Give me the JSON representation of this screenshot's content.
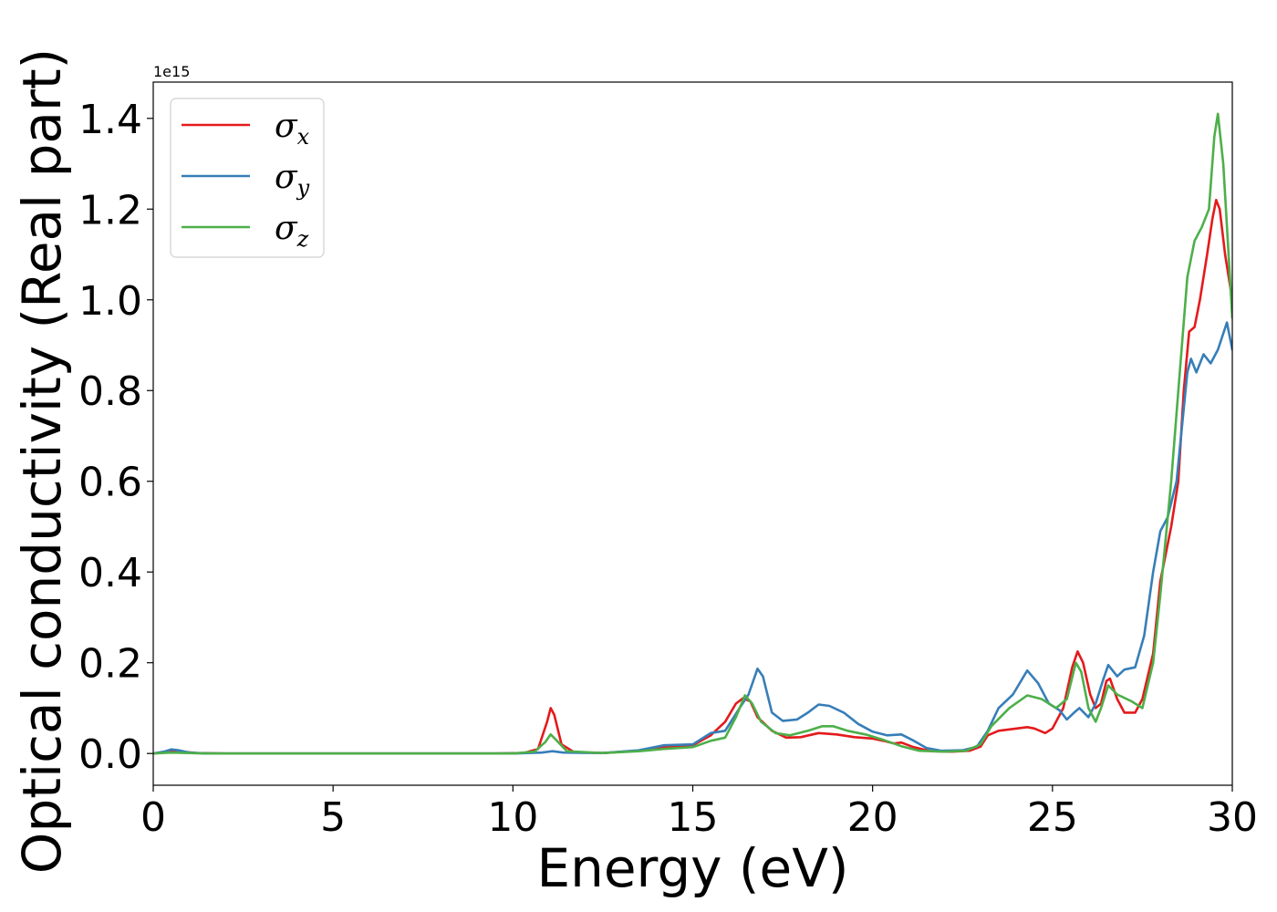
{
  "chart_data": {
    "type": "line",
    "xlabel": "Energy (eV)",
    "ylabel": "Optical conductivity (Real part)",
    "offset_text": "1e15",
    "xlim": [
      0,
      30
    ],
    "ylim": [
      -0.07,
      1.48
    ],
    "x_ticks": [
      0,
      5,
      10,
      15,
      20,
      25,
      30
    ],
    "x_tick_labels": [
      "0",
      "5",
      "10",
      "15",
      "20",
      "25",
      "30"
    ],
    "y_ticks": [
      0.0,
      0.2,
      0.4,
      0.6,
      0.8,
      1.0,
      1.2,
      1.4
    ],
    "y_tick_labels": [
      "0.0",
      "0.2",
      "0.4",
      "0.6",
      "0.8",
      "1.0",
      "1.2",
      "1.4"
    ],
    "grid": false,
    "legend_position": "top-left",
    "series": [
      {
        "name": "σx",
        "legend_main": "σ",
        "legend_sub": "x",
        "color": "#e41a1c",
        "points": [
          [
            0,
            0
          ],
          [
            0.3,
            0.003
          ],
          [
            0.5,
            0.006
          ],
          [
            0.8,
            0.004
          ],
          [
            1.2,
            0.001
          ],
          [
            2,
            0
          ],
          [
            9.5,
            0
          ],
          [
            10.3,
            0.001
          ],
          [
            10.7,
            0.01
          ],
          [
            10.95,
            0.07
          ],
          [
            11.05,
            0.1
          ],
          [
            11.15,
            0.085
          ],
          [
            11.35,
            0.02
          ],
          [
            11.7,
            0.003
          ],
          [
            12.5,
            0.001
          ],
          [
            13.5,
            0.006
          ],
          [
            14.2,
            0.013
          ],
          [
            15,
            0.018
          ],
          [
            15.5,
            0.04
          ],
          [
            15.9,
            0.07
          ],
          [
            16.2,
            0.11
          ],
          [
            16.4,
            0.122
          ],
          [
            16.6,
            0.115
          ],
          [
            16.8,
            0.08
          ],
          [
            17.2,
            0.05
          ],
          [
            17.6,
            0.035
          ],
          [
            18.0,
            0.036
          ],
          [
            18.5,
            0.045
          ],
          [
            19.0,
            0.042
          ],
          [
            19.5,
            0.036
          ],
          [
            20.0,
            0.033
          ],
          [
            20.3,
            0.028
          ],
          [
            20.6,
            0.022
          ],
          [
            20.8,
            0.024
          ],
          [
            21.1,
            0.015
          ],
          [
            21.6,
            0.005
          ],
          [
            22.2,
            0.004
          ],
          [
            22.7,
            0.006
          ],
          [
            23.0,
            0.015
          ],
          [
            23.2,
            0.04
          ],
          [
            23.5,
            0.05
          ],
          [
            24,
            0.055
          ],
          [
            24.3,
            0.058
          ],
          [
            24.5,
            0.055
          ],
          [
            24.8,
            0.045
          ],
          [
            25.0,
            0.055
          ],
          [
            25.3,
            0.1
          ],
          [
            25.55,
            0.19
          ],
          [
            25.7,
            0.225
          ],
          [
            25.85,
            0.2
          ],
          [
            26.05,
            0.13
          ],
          [
            26.2,
            0.1
          ],
          [
            26.35,
            0.11
          ],
          [
            26.5,
            0.16
          ],
          [
            26.6,
            0.165
          ],
          [
            26.8,
            0.12
          ],
          [
            27.0,
            0.09
          ],
          [
            27.3,
            0.09
          ],
          [
            27.5,
            0.12
          ],
          [
            27.8,
            0.22
          ],
          [
            28.0,
            0.38
          ],
          [
            28.3,
            0.5
          ],
          [
            28.5,
            0.6
          ],
          [
            28.65,
            0.8
          ],
          [
            28.8,
            0.93
          ],
          [
            28.95,
            0.94
          ],
          [
            29.1,
            1.0
          ],
          [
            29.3,
            1.1
          ],
          [
            29.45,
            1.18
          ],
          [
            29.55,
            1.22
          ],
          [
            29.65,
            1.2
          ],
          [
            29.8,
            1.1
          ],
          [
            30.0,
            1.0
          ]
        ]
      },
      {
        "name": "σy",
        "legend_main": "σ",
        "legend_sub": "y",
        "color": "#377eb8",
        "points": [
          [
            0,
            0
          ],
          [
            0.3,
            0.004
          ],
          [
            0.5,
            0.009
          ],
          [
            0.7,
            0.007
          ],
          [
            1.0,
            0.002
          ],
          [
            1.5,
            0
          ],
          [
            10,
            0
          ],
          [
            10.8,
            0.002
          ],
          [
            11.1,
            0.005
          ],
          [
            11.4,
            0.002
          ],
          [
            12.5,
            0.001
          ],
          [
            13.5,
            0.007
          ],
          [
            14.2,
            0.018
          ],
          [
            15.0,
            0.02
          ],
          [
            15.5,
            0.045
          ],
          [
            15.9,
            0.05
          ],
          [
            16.3,
            0.1
          ],
          [
            16.55,
            0.13
          ],
          [
            16.8,
            0.187
          ],
          [
            16.95,
            0.17
          ],
          [
            17.2,
            0.09
          ],
          [
            17.5,
            0.072
          ],
          [
            17.9,
            0.075
          ],
          [
            18.2,
            0.09
          ],
          [
            18.5,
            0.108
          ],
          [
            18.8,
            0.105
          ],
          [
            19.2,
            0.09
          ],
          [
            19.6,
            0.065
          ],
          [
            20.0,
            0.048
          ],
          [
            20.4,
            0.04
          ],
          [
            20.8,
            0.042
          ],
          [
            21.1,
            0.03
          ],
          [
            21.5,
            0.012
          ],
          [
            21.9,
            0.006
          ],
          [
            22.5,
            0.007
          ],
          [
            22.9,
            0.015
          ],
          [
            23.2,
            0.05
          ],
          [
            23.5,
            0.1
          ],
          [
            23.9,
            0.13
          ],
          [
            24.3,
            0.183
          ],
          [
            24.6,
            0.155
          ],
          [
            24.9,
            0.11
          ],
          [
            25.2,
            0.095
          ],
          [
            25.4,
            0.075
          ],
          [
            25.6,
            0.09
          ],
          [
            25.75,
            0.1
          ],
          [
            26.0,
            0.08
          ],
          [
            26.2,
            0.11
          ],
          [
            26.4,
            0.16
          ],
          [
            26.55,
            0.195
          ],
          [
            26.8,
            0.17
          ],
          [
            27.0,
            0.185
          ],
          [
            27.3,
            0.19
          ],
          [
            27.55,
            0.26
          ],
          [
            27.8,
            0.4
          ],
          [
            28.0,
            0.49
          ],
          [
            28.2,
            0.52
          ],
          [
            28.45,
            0.6
          ],
          [
            28.6,
            0.72
          ],
          [
            28.75,
            0.84
          ],
          [
            28.85,
            0.87
          ],
          [
            29.0,
            0.84
          ],
          [
            29.2,
            0.88
          ],
          [
            29.4,
            0.86
          ],
          [
            29.6,
            0.89
          ],
          [
            29.85,
            0.95
          ],
          [
            30.0,
            0.89
          ]
        ]
      },
      {
        "name": "σz",
        "legend_main": "σ",
        "legend_sub": "z",
        "color": "#4daf4a",
        "points": [
          [
            0,
            0
          ],
          [
            0.5,
            0.002
          ],
          [
            1.0,
            0.001
          ],
          [
            1.5,
            0
          ],
          [
            10,
            0
          ],
          [
            10.6,
            0.004
          ],
          [
            10.9,
            0.025
          ],
          [
            11.05,
            0.042
          ],
          [
            11.2,
            0.03
          ],
          [
            11.5,
            0.005
          ],
          [
            12.5,
            0.001
          ],
          [
            13.5,
            0.005
          ],
          [
            14.2,
            0.01
          ],
          [
            15.0,
            0.014
          ],
          [
            15.5,
            0.028
          ],
          [
            15.9,
            0.035
          ],
          [
            16.2,
            0.08
          ],
          [
            16.45,
            0.128
          ],
          [
            16.65,
            0.11
          ],
          [
            16.9,
            0.07
          ],
          [
            17.3,
            0.045
          ],
          [
            17.7,
            0.04
          ],
          [
            18.2,
            0.05
          ],
          [
            18.6,
            0.06
          ],
          [
            18.9,
            0.06
          ],
          [
            19.3,
            0.05
          ],
          [
            19.8,
            0.042
          ],
          [
            20.3,
            0.03
          ],
          [
            20.8,
            0.016
          ],
          [
            21.3,
            0.006
          ],
          [
            22.0,
            0.004
          ],
          [
            22.6,
            0.006
          ],
          [
            23.0,
            0.02
          ],
          [
            23.3,
            0.06
          ],
          [
            23.8,
            0.1
          ],
          [
            24.3,
            0.128
          ],
          [
            24.7,
            0.12
          ],
          [
            25.1,
            0.1
          ],
          [
            25.4,
            0.12
          ],
          [
            25.65,
            0.2
          ],
          [
            25.8,
            0.18
          ],
          [
            26.0,
            0.1
          ],
          [
            26.2,
            0.07
          ],
          [
            26.35,
            0.1
          ],
          [
            26.55,
            0.15
          ],
          [
            26.8,
            0.13
          ],
          [
            27.2,
            0.115
          ],
          [
            27.5,
            0.1
          ],
          [
            27.8,
            0.2
          ],
          [
            28.0,
            0.35
          ],
          [
            28.3,
            0.6
          ],
          [
            28.55,
            0.85
          ],
          [
            28.75,
            1.05
          ],
          [
            28.95,
            1.13
          ],
          [
            29.15,
            1.16
          ],
          [
            29.35,
            1.2
          ],
          [
            29.5,
            1.36
          ],
          [
            29.6,
            1.41
          ],
          [
            29.75,
            1.3
          ],
          [
            30.0,
            0.96
          ]
        ]
      }
    ]
  }
}
